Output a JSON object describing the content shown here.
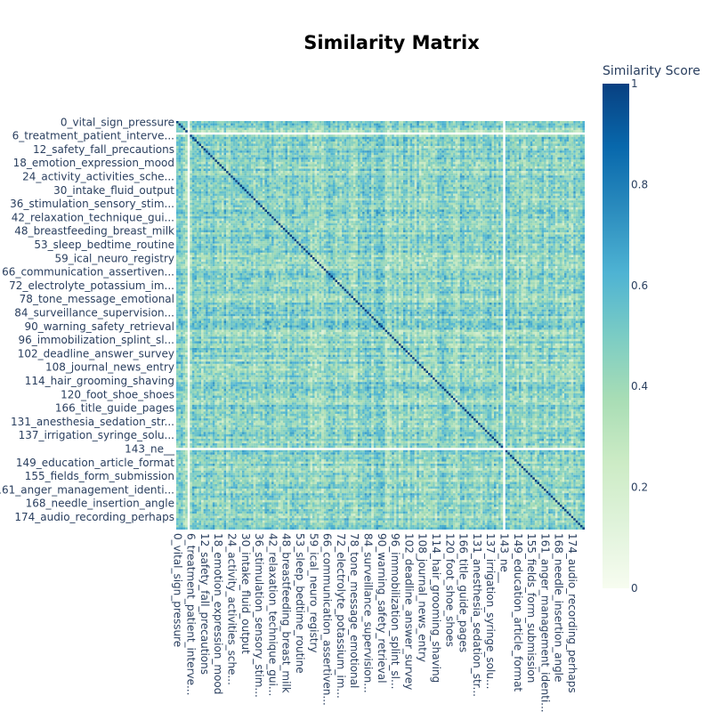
{
  "chart_data": {
    "type": "heatmap",
    "title": "Similarity Matrix",
    "n": 180,
    "tick_labels": [
      {
        "index": 0,
        "label": "0_vital_sign_pressure"
      },
      {
        "index": 6,
        "label": "6_treatment_patient_interve..."
      },
      {
        "index": 12,
        "label": "12_safety_fall_precautions"
      },
      {
        "index": 18,
        "label": "18_emotion_expression_mood"
      },
      {
        "index": 24,
        "label": "24_activity_activities_sche..."
      },
      {
        "index": 30,
        "label": "30_intake_fluid_output"
      },
      {
        "index": 36,
        "label": "36_stimulation_sensory_stim..."
      },
      {
        "index": 42,
        "label": "42_relaxation_technique_gui..."
      },
      {
        "index": 48,
        "label": "48_breastfeeding_breast_milk"
      },
      {
        "index": 54,
        "label": "53_sleep_bedtime_routine"
      },
      {
        "index": 60,
        "label": "59_ical_neuro_registry"
      },
      {
        "index": 66,
        "label": "66_communication_assertiven..."
      },
      {
        "index": 72,
        "label": "72_electrolyte_potassium_im..."
      },
      {
        "index": 78,
        "label": "78_tone_message_emotional"
      },
      {
        "index": 84,
        "label": "84_surveillance_supervision..."
      },
      {
        "index": 90,
        "label": "90_warning_safety_retrieval"
      },
      {
        "index": 96,
        "label": "96_immobilization_splint_sl..."
      },
      {
        "index": 102,
        "label": "102_deadline_answer_survey"
      },
      {
        "index": 108,
        "label": "108_journal_news_entry"
      },
      {
        "index": 114,
        "label": "114_hair_grooming_shaving"
      },
      {
        "index": 120,
        "label": "120_foot_shoe_shoes"
      },
      {
        "index": 126,
        "label": "166_title_guide_pages"
      },
      {
        "index": 132,
        "label": "131_anesthesia_sedation_str..."
      },
      {
        "index": 138,
        "label": "137_irrigation_syringe_solu..."
      },
      {
        "index": 144,
        "label": "143_ne__"
      },
      {
        "index": 150,
        "label": "149_education_article_format"
      },
      {
        "index": 156,
        "label": "155_fields_form_submission"
      },
      {
        "index": 162,
        "label": "161_anger_management_identi..."
      },
      {
        "index": 168,
        "label": "168_needle_insertion_angle"
      },
      {
        "index": 174,
        "label": "174_audio_recording_perhaps"
      }
    ],
    "blank_indices": [
      5,
      144
    ],
    "diagonal_value": 1.0,
    "off_diagonal_range": [
      0.15,
      0.75
    ],
    "zmin": 0,
    "zmax": 1,
    "colorscale": [
      [
        0.0,
        "#f7fcf0"
      ],
      [
        0.125,
        "#e0f3db"
      ],
      [
        0.25,
        "#ccebc5"
      ],
      [
        0.375,
        "#a8ddb5"
      ],
      [
        0.5,
        "#7bccc4"
      ],
      [
        0.625,
        "#4eb3d3"
      ],
      [
        0.75,
        "#2b8cbe"
      ],
      [
        0.875,
        "#0868ac"
      ],
      [
        1.0,
        "#084081"
      ]
    ],
    "colorbar": {
      "title": "Similarity Score",
      "ticks": [
        0,
        0.2,
        0.4,
        0.6,
        0.8,
        1
      ],
      "tick_labels": [
        "0",
        "0.2",
        "0.4",
        "0.6",
        "0.8",
        "1"
      ]
    }
  }
}
